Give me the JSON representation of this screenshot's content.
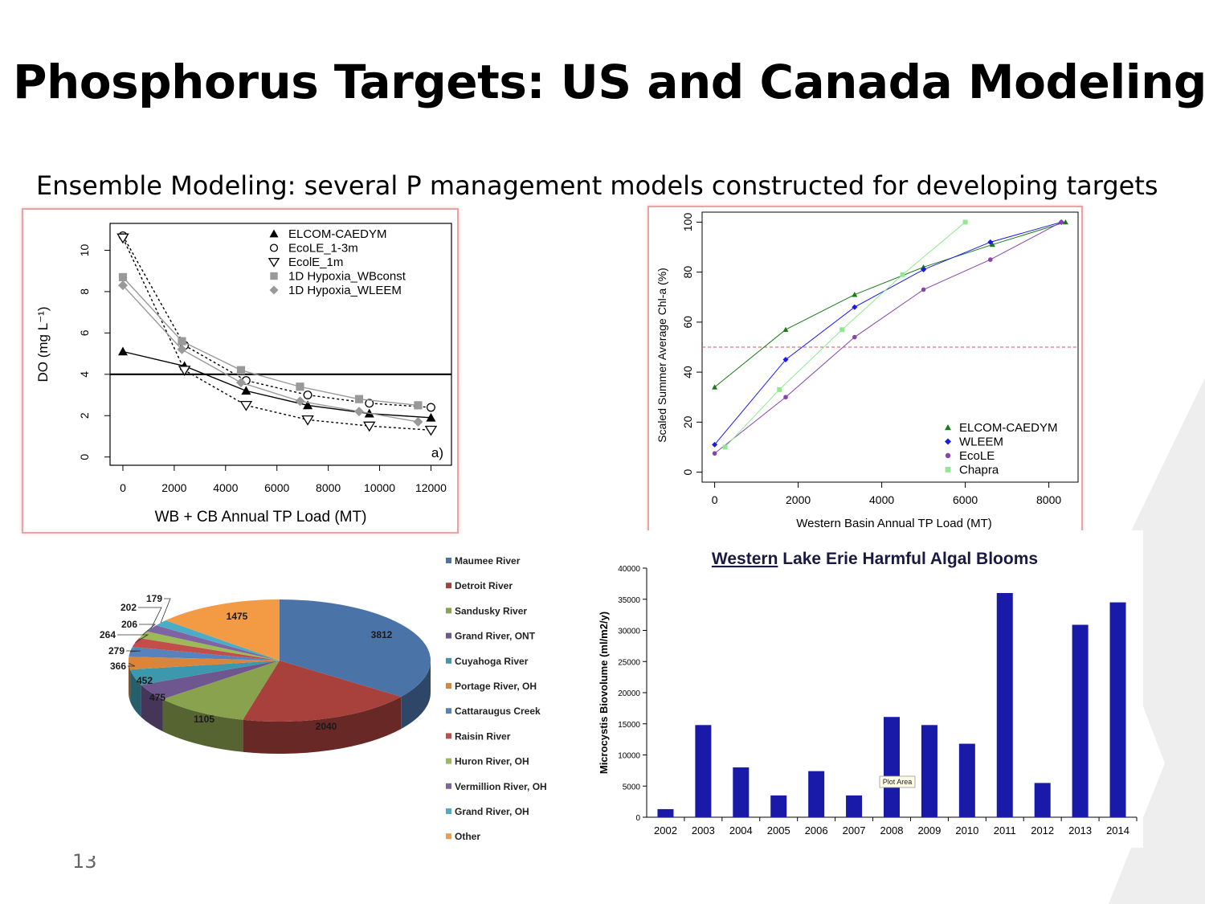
{
  "slide": {
    "title": "Phosphorus Targets: US and Canada Modeling",
    "subtitle": "Ensemble Modeling: several P management models constructed for developing targets",
    "page_number": "13"
  },
  "chart_data": [
    {
      "id": "do",
      "type": "line",
      "xlabel": "WB + CB Annual TP Load (MT)",
      "ylabel": "DO (mg L⁻¹)",
      "xlim": [
        -500,
        12800
      ],
      "ylim": [
        -0.4,
        11.3
      ],
      "xticks": [
        0,
        2000,
        4000,
        6000,
        8000,
        10000,
        12000
      ],
      "yticks": [
        0,
        2,
        4,
        6,
        8,
        10
      ],
      "threshold": 4,
      "panel_label": "a)",
      "legend_position": "top-right",
      "series": [
        {
          "name": "ELCOM-CAEDYM",
          "marker": "triangle",
          "color": "#000000",
          "dash": "",
          "x": [
            0,
            2400,
            4800,
            7200,
            9600,
            12000
          ],
          "y": [
            5.1,
            4.4,
            3.2,
            2.5,
            2.1,
            1.9
          ]
        },
        {
          "name": "EcoLE_1-3m",
          "marker": "circle",
          "color": "#000000",
          "dash": "3,3",
          "x": [
            0,
            2400,
            4800,
            7200,
            9600,
            12000
          ],
          "y": [
            10.7,
            5.4,
            3.7,
            3.0,
            2.6,
            2.4
          ]
        },
        {
          "name": "EcolE_1m",
          "marker": "tri-down",
          "color": "#000000",
          "dash": "3,3",
          "x": [
            0,
            2400,
            4800,
            7200,
            9600,
            12000
          ],
          "y": [
            10.6,
            4.2,
            2.5,
            1.8,
            1.5,
            1.3
          ]
        },
        {
          "name": "1D Hypoxia_WBconst",
          "marker": "square",
          "color": "#999999",
          "dash": "",
          "x": [
            0,
            2300,
            4600,
            6900,
            9200,
            11500
          ],
          "y": [
            8.7,
            5.6,
            4.2,
            3.4,
            2.8,
            2.5
          ]
        },
        {
          "name": "1D Hypoxia_WLEEM",
          "marker": "diamond",
          "color": "#999999",
          "dash": "",
          "x": [
            0,
            2300,
            4600,
            6900,
            9200,
            11500
          ],
          "y": [
            8.3,
            5.2,
            3.6,
            2.7,
            2.2,
            1.7
          ]
        }
      ]
    },
    {
      "id": "chla",
      "type": "line",
      "xlabel": "Western Basin Annual TP Load (MT)",
      "ylabel": "Scaled Summer Average Chl-a (%)",
      "xlim": [
        -300,
        8700
      ],
      "ylim": [
        -4,
        104
      ],
      "xticks": [
        0,
        2000,
        4000,
        6000,
        8000
      ],
      "yticks": [
        0,
        20,
        40,
        60,
        80,
        100
      ],
      "threshold": 50,
      "legend_position": "bottom-right",
      "series": [
        {
          "name": "ELCOM-CAEDYM",
          "marker": "triangle",
          "color": "#1a7a1a",
          "x": [
            0,
            1700,
            3350,
            5000,
            6650,
            8400
          ],
          "y": [
            34,
            57,
            71,
            82,
            91,
            100
          ]
        },
        {
          "name": "WLEEM",
          "marker": "diamond",
          "color": "#1a1aee",
          "x": [
            0,
            1700,
            3350,
            5000,
            6600,
            8300
          ],
          "y": [
            11,
            45,
            66,
            81,
            92,
            100
          ]
        },
        {
          "name": "EcoLE",
          "marker": "circle",
          "color": "#8844aa",
          "x": [
            0,
            1700,
            3350,
            5000,
            6600,
            8300
          ],
          "y": [
            7.5,
            30,
            54,
            73,
            85,
            100
          ]
        },
        {
          "name": "Chapra",
          "marker": "square",
          "color": "#90e890",
          "x": [
            250,
            1550,
            3050,
            4500,
            6000
          ],
          "y": [
            10,
            33,
            57,
            79,
            100
          ]
        }
      ]
    },
    {
      "id": "pie",
      "type": "pie",
      "legend_position": "right",
      "slices": [
        {
          "name": "Maumee River",
          "value": 3812,
          "color": "#4a73a8"
        },
        {
          "name": "Detroit River",
          "value": 2040,
          "color": "#a8403c"
        },
        {
          "name": "Sandusky River",
          "value": 1105,
          "color": "#89a24d"
        },
        {
          "name": "Grand River, ONT",
          "value": 475,
          "color": "#6e568f"
        },
        {
          "name": "Cuyahoga River",
          "value": 452,
          "color": "#3d98ad"
        },
        {
          "name": "Portage River, OH",
          "value": 366,
          "color": "#dc8538"
        },
        {
          "name": "Cattaraugus Creek",
          "value": 279,
          "color": "#5682bd"
        },
        {
          "name": "Raisin River",
          "value": 264,
          "color": "#c24e4b"
        },
        {
          "name": "Huron River, OH",
          "value": 206,
          "color": "#9cbb58"
        },
        {
          "name": "Vermillion River, OH",
          "value": 202,
          "color": "#7f63a2"
        },
        {
          "name": "Grand River, OH",
          "value": 179,
          "color": "#4aacc5"
        },
        {
          "name": "Other",
          "value": 1475,
          "color": "#f39a45"
        }
      ]
    },
    {
      "id": "hab",
      "type": "bar",
      "title": "Western Lake Erie Harmful Algal Blooms",
      "title_underlined": "Western",
      "title_rest": " Lake Erie Harmful Algal Blooms",
      "ylabel": "Microcystis Biovolume (ml/m2/y)",
      "ylim": [
        0,
        40000
      ],
      "yticks": [
        0,
        5000,
        10000,
        15000,
        20000,
        25000,
        30000,
        35000,
        40000
      ],
      "categories": [
        "2002",
        "2003",
        "2004",
        "2005",
        "2006",
        "2007",
        "2008",
        "2009",
        "2010",
        "2011",
        "2012",
        "2013",
        "2014"
      ],
      "values": [
        1300,
        14800,
        8000,
        3500,
        7400,
        3500,
        16100,
        14800,
        11800,
        36000,
        5500,
        30900,
        34500
      ],
      "bar_color": "#1a1aa8",
      "tooltip": "Plot Area"
    }
  ]
}
